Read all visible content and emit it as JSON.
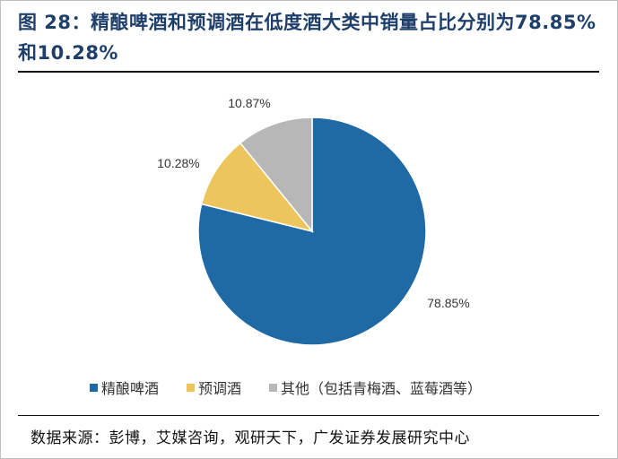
{
  "title": "图  28：精酿啤酒和预调酒在低度酒大类中销量占比分别为78.85%和10.28%",
  "source": "数据来源：彭博，艾媒咨询，观研天下，广发证券发展研究中心",
  "chart_data": {
    "type": "pie",
    "title": "图  28：精酿啤酒和预调酒在低度酒大类中销量占比分别为78.85%和10.28%",
    "categories": [
      "精酿啤酒",
      "预调酒",
      "其他（包括青梅酒、蓝莓酒等）"
    ],
    "values": [
      78.85,
      10.28,
      10.87
    ],
    "labels": [
      "78.85%",
      "10.28%",
      "10.87%"
    ],
    "colors": [
      "#1f6aa5",
      "#ecc55c",
      "#b7b7b7"
    ],
    "start": "12 o'clock",
    "direction": "clockwise",
    "legend": "bottom"
  }
}
